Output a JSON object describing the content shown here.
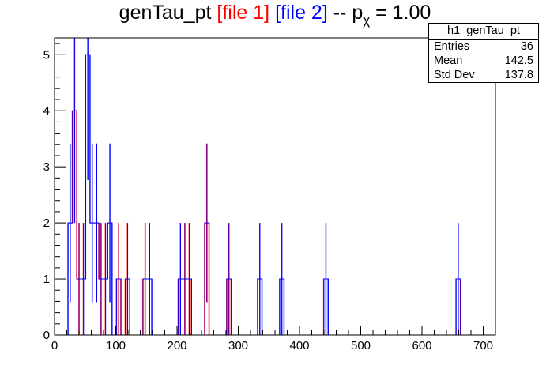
{
  "title": {
    "name": "genTau_pt",
    "file1": "[file 1]",
    "file2": "[file 2]",
    "pchi_prefix": "-- p",
    "pchi_sub": "χ",
    "pchi_value": "= 1.00"
  },
  "stats": {
    "name": "h1_genTau_pt",
    "rows": [
      {
        "label": "Entries",
        "value": "36"
      },
      {
        "label": "Mean",
        "value": "142.5"
      },
      {
        "label": "Std Dev",
        "value": "137.8"
      }
    ]
  },
  "colors": {
    "file1": "#ff0000",
    "file2": "#0000ff",
    "axis": "#000000"
  },
  "chart_data": {
    "type": "histogram",
    "x_axis": {
      "range": [
        0,
        720
      ],
      "ticks": [
        0,
        100,
        200,
        300,
        400,
        500,
        600,
        700
      ]
    },
    "y_axis": {
      "range": [
        0,
        5.3
      ],
      "ticks": [
        0,
        1,
        2,
        3,
        4,
        5
      ]
    },
    "bin_width": 7.2,
    "series": [
      {
        "name": "file 1",
        "color": "#ff0000",
        "error_bars": true,
        "bins": [
          {
            "x": 21.6,
            "y": 2
          },
          {
            "x": 28.8,
            "y": 4
          },
          {
            "x": 36.0,
            "y": 1
          },
          {
            "x": 43.2,
            "y": 1
          },
          {
            "x": 50.4,
            "y": 5
          },
          {
            "x": 57.6,
            "y": 2
          },
          {
            "x": 64.8,
            "y": 2
          },
          {
            "x": 72.0,
            "y": 1
          },
          {
            "x": 79.2,
            "y": 1
          },
          {
            "x": 86.4,
            "y": 2
          },
          {
            "x": 100.8,
            "y": 1
          },
          {
            "x": 115.2,
            "y": 1
          },
          {
            "x": 144.0,
            "y": 1
          },
          {
            "x": 151.2,
            "y": 1
          },
          {
            "x": 201.6,
            "y": 1
          },
          {
            "x": 208.8,
            "y": 1
          },
          {
            "x": 216.0,
            "y": 1
          },
          {
            "x": 244.8,
            "y": 2
          },
          {
            "x": 280.8,
            "y": 1
          },
          {
            "x": 331.2,
            "y": 1
          },
          {
            "x": 367.2,
            "y": 1
          },
          {
            "x": 439.2,
            "y": 1
          },
          {
            "x": 655.2,
            "y": 1
          }
        ]
      },
      {
        "name": "file 2",
        "color": "#0000ff",
        "error_bars": true,
        "bins": [
          {
            "x": 21.6,
            "y": 2
          },
          {
            "x": 28.8,
            "y": 4
          },
          {
            "x": 36.0,
            "y": 1
          },
          {
            "x": 43.2,
            "y": 1
          },
          {
            "x": 50.4,
            "y": 5
          },
          {
            "x": 57.6,
            "y": 2
          },
          {
            "x": 64.8,
            "y": 2
          },
          {
            "x": 72.0,
            "y": 1
          },
          {
            "x": 79.2,
            "y": 1
          },
          {
            "x": 86.4,
            "y": 2
          },
          {
            "x": 100.8,
            "y": 1
          },
          {
            "x": 115.2,
            "y": 1
          },
          {
            "x": 144.0,
            "y": 1
          },
          {
            "x": 151.2,
            "y": 1
          },
          {
            "x": 201.6,
            "y": 1
          },
          {
            "x": 208.8,
            "y": 1
          },
          {
            "x": 216.0,
            "y": 1
          },
          {
            "x": 244.8,
            "y": 2
          },
          {
            "x": 280.8,
            "y": 1
          },
          {
            "x": 331.2,
            "y": 1
          },
          {
            "x": 367.2,
            "y": 1
          },
          {
            "x": 439.2,
            "y": 1
          },
          {
            "x": 655.2,
            "y": 1
          }
        ]
      }
    ]
  }
}
